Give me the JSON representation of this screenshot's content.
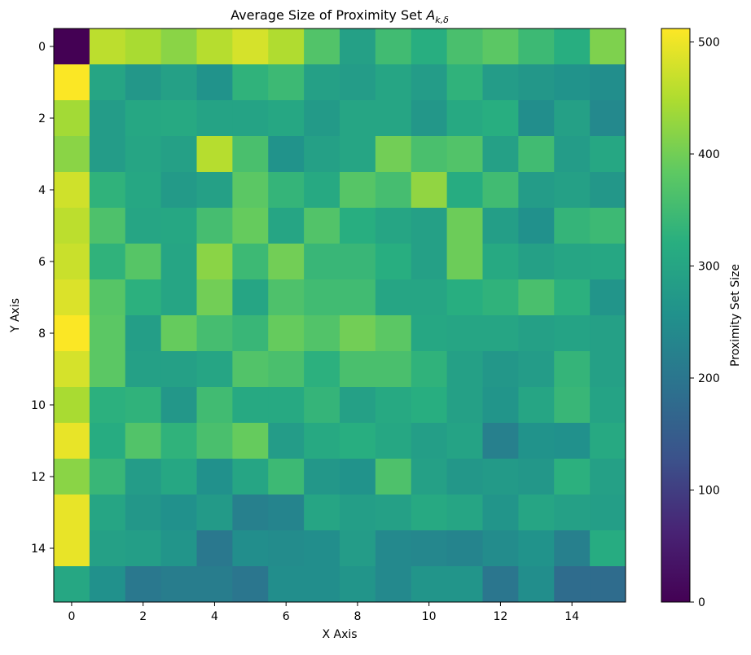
{
  "chart_data": {
    "type": "heatmap",
    "title": "Average Size of Proximity Set ",
    "title_math": "A",
    "title_sub": "k,δ",
    "xlabel": "X Axis",
    "ylabel": "Y Axis",
    "colorbar_label": "Proximity Set Size",
    "colormap": "viridis",
    "vmin": 0,
    "vmax": 512,
    "x_ticks": [
      "0",
      "2",
      "4",
      "6",
      "8",
      "10",
      "12",
      "14"
    ],
    "y_ticks": [
      "0",
      "2",
      "4",
      "6",
      "8",
      "10",
      "12",
      "14"
    ],
    "colorbar_ticks": [
      "0",
      "100",
      "200",
      "300",
      "400",
      "500"
    ],
    "grid": false,
    "values": [
      [
        0,
        460,
        445,
        420,
        455,
        480,
        450,
        370,
        290,
        350,
        320,
        360,
        380,
        345,
        320,
        410
      ],
      [
        510,
        300,
        270,
        290,
        260,
        330,
        345,
        290,
        280,
        300,
        280,
        330,
        280,
        270,
        260,
        250
      ],
      [
        440,
        280,
        305,
        310,
        295,
        295,
        305,
        275,
        300,
        300,
        270,
        310,
        320,
        250,
        290,
        240
      ],
      [
        420,
        280,
        300,
        290,
        455,
        360,
        260,
        290,
        300,
        400,
        360,
        370,
        290,
        350,
        280,
        305
      ],
      [
        475,
        330,
        305,
        275,
        290,
        380,
        335,
        310,
        375,
        355,
        425,
        315,
        350,
        280,
        290,
        270
      ],
      [
        460,
        365,
        300,
        305,
        355,
        390,
        300,
        370,
        320,
        300,
        290,
        395,
        285,
        255,
        335,
        345
      ],
      [
        470,
        330,
        375,
        300,
        420,
        345,
        400,
        340,
        340,
        320,
        290,
        395,
        310,
        290,
        300,
        305
      ],
      [
        485,
        375,
        325,
        300,
        400,
        300,
        365,
        350,
        350,
        300,
        300,
        320,
        330,
        360,
        325,
        265
      ],
      [
        510,
        380,
        285,
        390,
        355,
        340,
        390,
        370,
        400,
        380,
        305,
        300,
        300,
        290,
        295,
        290
      ],
      [
        480,
        380,
        290,
        290,
        300,
        370,
        360,
        325,
        360,
        360,
        330,
        290,
        270,
        280,
        335,
        290
      ],
      [
        445,
        325,
        330,
        270,
        350,
        310,
        310,
        335,
        290,
        310,
        320,
        290,
        265,
        300,
        340,
        295
      ],
      [
        495,
        315,
        370,
        330,
        360,
        390,
        280,
        310,
        320,
        305,
        285,
        295,
        220,
        260,
        255,
        310
      ],
      [
        420,
        340,
        280,
        305,
        255,
        300,
        345,
        270,
        260,
        365,
        290,
        270,
        275,
        270,
        325,
        290
      ],
      [
        495,
        300,
        270,
        255,
        275,
        220,
        230,
        300,
        285,
        290,
        310,
        300,
        265,
        300,
        290,
        285
      ],
      [
        495,
        290,
        285,
        265,
        205,
        250,
        245,
        250,
        280,
        240,
        235,
        230,
        245,
        260,
        220,
        315
      ],
      [
        305,
        255,
        205,
        215,
        215,
        200,
        250,
        250,
        265,
        240,
        265,
        265,
        200,
        250,
        180,
        180
      ]
    ]
  }
}
